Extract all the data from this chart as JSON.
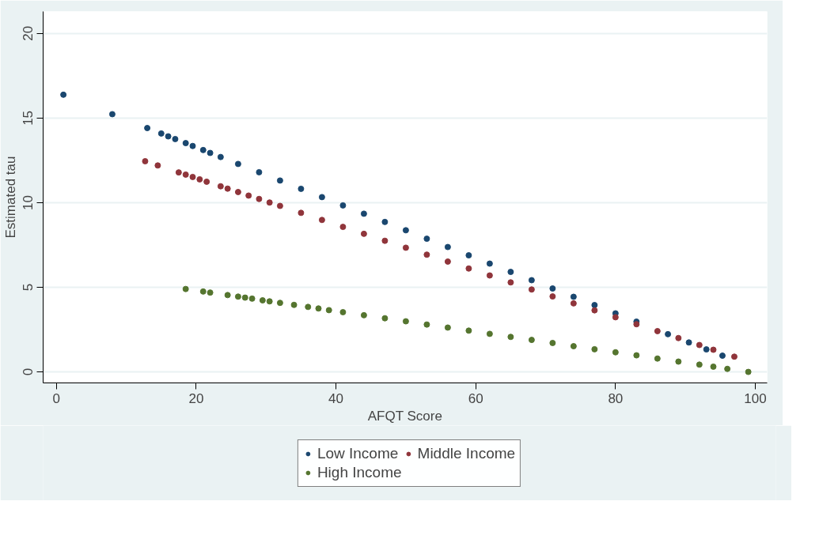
{
  "chart_data": {
    "type": "scatter",
    "xlabel": "AFQT Score",
    "ylabel": "Estimated tau",
    "xlim": [
      -1.9,
      101.7
    ],
    "ylim": [
      -0.65,
      21.3
    ],
    "xticks": [
      0,
      20,
      40,
      60,
      80,
      100
    ],
    "yticks": [
      0,
      5,
      10,
      15,
      20
    ],
    "grid": "y",
    "legend": "bottom",
    "marker": "circle",
    "series": [
      {
        "name": "Low Income",
        "color": "#1a476f",
        "x": [
          1,
          8,
          13,
          15,
          16,
          17,
          18.5,
          19.5,
          21,
          22,
          23.5,
          26,
          29,
          32,
          35,
          38,
          41,
          44,
          47,
          50,
          53,
          56,
          59,
          62,
          65,
          68,
          71,
          74,
          77,
          80,
          83,
          87.5,
          90.5,
          93,
          95.3
        ],
        "values": [
          16.38,
          15.23,
          14.41,
          14.09,
          13.92,
          13.76,
          13.52,
          13.35,
          13.11,
          12.94,
          12.7,
          12.29,
          11.8,
          11.31,
          10.82,
          10.33,
          9.84,
          9.35,
          8.86,
          8.37,
          7.87,
          7.38,
          6.89,
          6.4,
          5.91,
          5.42,
          4.93,
          4.44,
          3.95,
          3.46,
          2.97,
          2.23,
          1.74,
          1.33,
          0.96
        ]
      },
      {
        "name": "Middle Income",
        "color": "#90353b",
        "x": [
          12.7,
          14.5,
          17.5,
          18.5,
          19.5,
          20.5,
          21.5,
          23.5,
          24.5,
          26,
          27.5,
          29,
          30.5,
          32,
          35,
          38,
          41,
          44,
          47,
          50,
          53,
          56,
          59,
          62,
          65,
          68,
          71,
          74,
          77,
          80,
          83,
          86,
          89,
          92,
          94,
          97
        ],
        "values": [
          12.45,
          12.2,
          11.79,
          11.66,
          11.52,
          11.38,
          11.24,
          10.97,
          10.83,
          10.63,
          10.42,
          10.22,
          10.01,
          9.81,
          9.4,
          8.98,
          8.57,
          8.16,
          7.75,
          7.34,
          6.93,
          6.52,
          6.11,
          5.7,
          5.29,
          4.87,
          4.46,
          4.05,
          3.64,
          3.23,
          2.82,
          2.41,
          2.0,
          1.59,
          1.31,
          0.9
        ]
      },
      {
        "name": "High Income",
        "color": "#55752f",
        "x": [
          18.5,
          21,
          22,
          24.5,
          26,
          27,
          28,
          29.5,
          30.5,
          32,
          34,
          36,
          37.5,
          39,
          41,
          44,
          47,
          50,
          53,
          56,
          59,
          62,
          65,
          68,
          71,
          74,
          77,
          80,
          83,
          86,
          89,
          92,
          94,
          96,
          99
        ],
        "values": [
          4.9,
          4.75,
          4.69,
          4.54,
          4.45,
          4.39,
          4.33,
          4.23,
          4.17,
          4.08,
          3.96,
          3.84,
          3.75,
          3.65,
          3.53,
          3.35,
          3.17,
          2.99,
          2.8,
          2.62,
          2.44,
          2.25,
          2.07,
          1.89,
          1.71,
          1.52,
          1.34,
          1.16,
          0.98,
          0.79,
          0.61,
          0.43,
          0.31,
          0.18,
          0.0
        ]
      }
    ]
  }
}
